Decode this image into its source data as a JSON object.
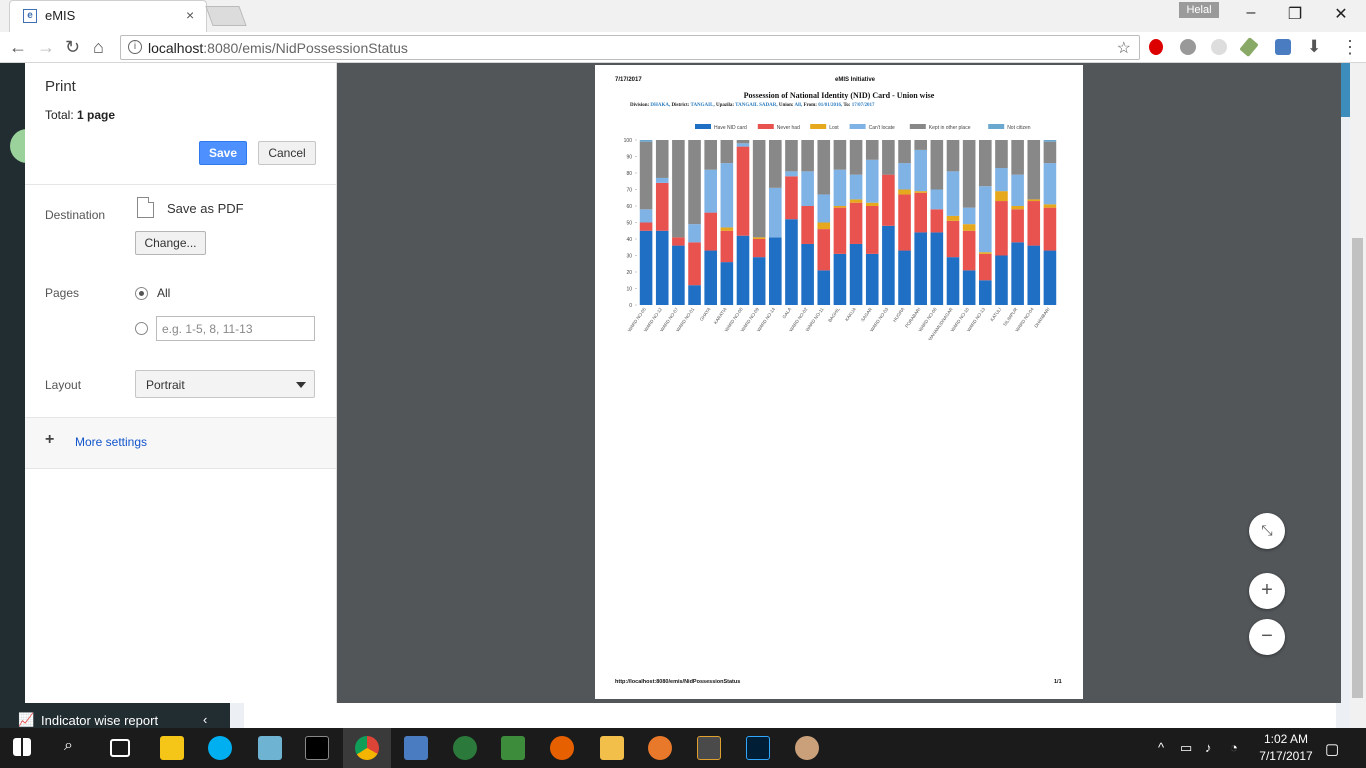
{
  "browser": {
    "tab_title": "eMIS",
    "tab_favicon": "e",
    "tab_close": "×",
    "user_badge": "Helal",
    "url_host": "localhost",
    "url_rest": ":8080/emis/NidPossessionStatus"
  },
  "app": {
    "indicator_report": "Indicator wise report"
  },
  "print": {
    "title": "Print",
    "total_label": "Total:",
    "total_value": "1 page",
    "save": "Save",
    "cancel": "Cancel",
    "destination_label": "Destination",
    "destination_value": "Save as PDF",
    "change": "Change...",
    "pages_label": "Pages",
    "pages_all": "All",
    "pages_placeholder": "e.g. 1-5, 8, 11-13",
    "layout_label": "Layout",
    "layout_value": "Portrait",
    "more_settings": "More settings"
  },
  "preview": {
    "date": "7/17/2017",
    "header_center": "eMIS Initiative",
    "title": "Possession of National Identity (NID) Card - Union wise",
    "filters": [
      {
        "label": "Division:",
        "value": "DHAKA"
      },
      {
        "label": "District:",
        "value": "TANGAIL"
      },
      {
        "label": "Upazila:",
        "value": "TANGAIL SADAR"
      },
      {
        "label": "Union:",
        "value": "All"
      },
      {
        "label": "From:",
        "value": "01/01/2016"
      },
      {
        "label": "To:",
        "value": "17/07/2017"
      }
    ],
    "footer_url": "http://localhost:8080/emis/NidPossessionStatus",
    "footer_page": "1/1"
  },
  "chart_data": {
    "type": "bar",
    "stacked": true,
    "ylim": [
      0,
      100
    ],
    "yticks": [
      0,
      10,
      20,
      30,
      40,
      50,
      60,
      70,
      80,
      90,
      100
    ],
    "legend_position": "top",
    "categories": [
      "WARD NO-05",
      "WARD NO-12",
      "WARD NO-07",
      "WARD NO-01",
      "GHAYA",
      "KARATIA",
      "WARD NO-08",
      "WARD NO-09",
      "WARD NO-14",
      "GALA",
      "WARD NO-02",
      "WARD NO-11",
      "BAGHIL",
      "KAKUA",
      "SAGAR",
      "WARD NO-03",
      "HUGRA",
      "PORABARI",
      "WARD NO-06",
      "MAHAMUDNAGAR",
      "WARD NO-10",
      "WARD NO-13",
      "KATULI",
      "SILIMPUR",
      "WARD NO-04",
      "DHANBARI"
    ],
    "series": [
      {
        "name": "Have NID card",
        "color": "#1f6fc5",
        "values": [
          45,
          45,
          36,
          12,
          33,
          26,
          42,
          29,
          41,
          52,
          37,
          21,
          31,
          37,
          31,
          48,
          33,
          44,
          44,
          29,
          21,
          15,
          30,
          38,
          36,
          33
        ]
      },
      {
        "name": "Never had",
        "color": "#e8524f",
        "values": [
          5,
          29,
          5,
          26,
          23,
          19,
          54,
          11,
          0,
          26,
          23,
          25,
          28,
          25,
          29,
          31,
          34,
          24,
          14,
          22,
          24,
          16,
          33,
          20,
          27,
          26
        ]
      },
      {
        "name": "Lost",
        "color": "#e6a81c",
        "values": [
          0,
          0,
          0,
          0,
          0,
          2,
          0,
          1,
          0,
          0,
          0,
          4,
          1,
          2,
          2,
          0,
          3,
          1,
          0,
          3,
          4,
          1,
          6,
          2,
          1,
          2
        ]
      },
      {
        "name": "Can't locate",
        "color": "#7fb2e5",
        "values": [
          8,
          3,
          0,
          11,
          26,
          39,
          2,
          0,
          30,
          3,
          21,
          17,
          22,
          15,
          26,
          0,
          16,
          25,
          12,
          27,
          10,
          40,
          14,
          19,
          0,
          25
        ]
      },
      {
        "name": "Kept in other place",
        "color": "#888888",
        "values": [
          41,
          23,
          59,
          51,
          18,
          14,
          2,
          59,
          29,
          19,
          19,
          33,
          18,
          21,
          12,
          21,
          14,
          6,
          30,
          19,
          41,
          28,
          17,
          21,
          36,
          13
        ]
      },
      {
        "name": "Not citizen",
        "color": "#6aa8d0",
        "values": [
          1,
          0,
          0,
          0,
          0,
          0,
          0,
          0,
          0,
          0,
          0,
          0,
          0,
          0,
          0,
          0,
          0,
          0,
          0,
          0,
          0,
          0,
          0,
          0,
          0,
          1
        ]
      }
    ]
  },
  "taskbar": {
    "time": "1:02 AM",
    "date": "7/17/2017"
  }
}
